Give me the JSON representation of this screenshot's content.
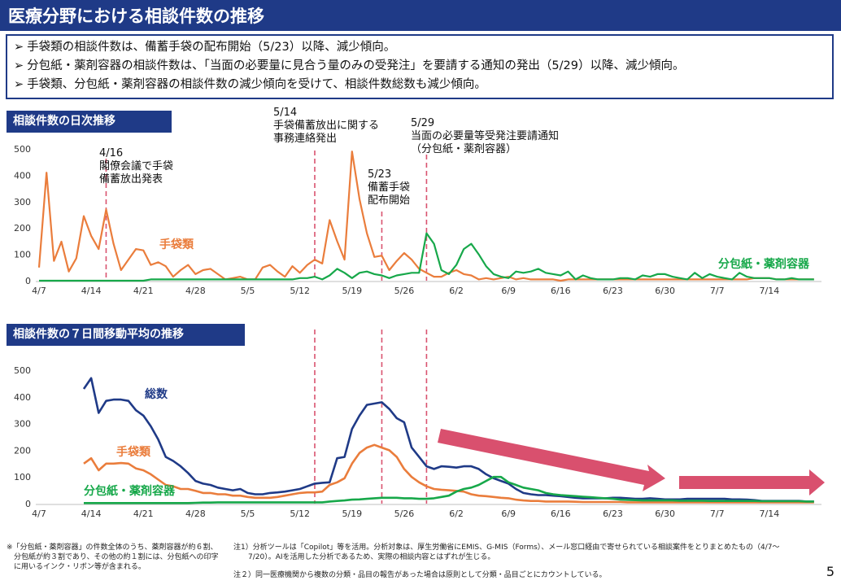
{
  "title": "医療分野における相談件数の推移",
  "summary": [
    "手袋類の相談件数は、備蓄手袋の配布開始（5/23）以降、減少傾向。",
    "分包紙・薬剤容器の相談件数は、「当面の必要量に見合う量のみの受発注」を要請する通知の発出（5/29）以降、減少傾向。",
    "手袋類、分包紙・薬剤容器の相談件数の減少傾向を受けて、相談件数総数も減少傾向。"
  ],
  "section_daily": "相談件数の日次推移",
  "section_ma": "相談件数の７日間移動平均の推移",
  "colors": {
    "navy": "#1f3a87",
    "orange": "#ea7d3c",
    "green": "#17a84a",
    "dash": "#d9536f",
    "arrow": "#d9506e"
  },
  "footnotes": {
    "left": "※「分包紙・薬剤容器」の件数全体のうち、薬剤容器が約６割、\n　分包紙が約３割であり、その他の約１割には、分包紙への印字\n　に用いるインク・リボン等が含まれる。",
    "note1": "注1）分析ツールは「Copilot」等を活用。分析対象は、厚生労働省にEMIS、G-MIS（Forms）、メール窓口経由で寄せられている相談案件をとりまとめたもの（4/7～\n　　7/20）。AIを活用した分析であるため、実際の相談内容とはずれが生じる。",
    "note2": "注２）同一医療機関から複数の分類・品目の報告があった場合は原則として分類・品目ごとにカウントしている。"
  },
  "page_number": "5",
  "chart_data": [
    {
      "type": "line",
      "title": "相談件数の日次推移",
      "x_tick_labels": [
        "4/7",
        "4/14",
        "4/21",
        "4/28",
        "5/5",
        "5/12",
        "5/19",
        "5/26",
        "6/2",
        "6/9",
        "6/16",
        "6/23",
        "6/30",
        "7/7",
        "7/14"
      ],
      "x_start": "4/7",
      "x_end": "7/20",
      "ylim": [
        0,
        500
      ],
      "y_ticks": [
        0,
        100,
        200,
        300,
        400,
        500
      ],
      "grid": false,
      "series": [
        {
          "name": "手袋類",
          "color": "#ea7d3c",
          "values": [
            50,
            410,
            75,
            148,
            35,
            85,
            245,
            170,
            120,
            270,
            140,
            40,
            80,
            120,
            115,
            60,
            70,
            55,
            15,
            40,
            60,
            25,
            40,
            45,
            25,
            5,
            10,
            15,
            5,
            5,
            50,
            60,
            35,
            15,
            55,
            30,
            60,
            80,
            65,
            230,
            150,
            80,
            490,
            310,
            180,
            90,
            95,
            40,
            75,
            105,
            80,
            45,
            30,
            15,
            15,
            30,
            40,
            25,
            20,
            5,
            10,
            5,
            10,
            15,
            5,
            10,
            5,
            5,
            5,
            5,
            0,
            5,
            5,
            5,
            5,
            5,
            5,
            5,
            5,
            5,
            5,
            5,
            5,
            5,
            5,
            5,
            5,
            5,
            5,
            5,
            5,
            5,
            5,
            5,
            5,
            5,
            10,
            10,
            10,
            5,
            5,
            5,
            5,
            5,
            5
          ]
        },
        {
          "name": "分包紙・薬剤容器",
          "color": "#17a84a",
          "values": [
            0,
            0,
            0,
            0,
            0,
            0,
            0,
            0,
            0,
            0,
            0,
            0,
            0,
            0,
            0,
            5,
            5,
            5,
            5,
            5,
            5,
            5,
            5,
            5,
            5,
            5,
            5,
            5,
            5,
            5,
            5,
            5,
            5,
            5,
            5,
            10,
            10,
            15,
            5,
            20,
            45,
            30,
            10,
            30,
            35,
            25,
            20,
            10,
            20,
            25,
            30,
            30,
            180,
            140,
            40,
            25,
            60,
            120,
            140,
            100,
            55,
            25,
            15,
            10,
            35,
            30,
            35,
            45,
            30,
            25,
            20,
            35,
            5,
            20,
            10,
            5,
            5,
            5,
            10,
            10,
            5,
            20,
            15,
            25,
            25,
            15,
            10,
            5,
            30,
            10,
            25,
            15,
            10,
            5,
            30,
            15,
            10,
            10,
            10,
            5,
            5,
            10,
            5,
            5,
            5
          ]
        }
      ],
      "annotations": [
        {
          "date": "4/16",
          "text": "4/16\n閣僚会議で手袋\n備蓄放出発表"
        },
        {
          "date": "5/14",
          "text": "5/14\n手袋備蓄放出に関する\n事務連絡発出"
        },
        {
          "date": "5/23",
          "text": "5/23\n備蓄手袋\n配布開始"
        },
        {
          "date": "5/29",
          "text": "5/29\n当面の必要量等受発注要請通知\n（分包紙・薬剤容器）"
        }
      ]
    },
    {
      "type": "line",
      "title": "相談件数の７日間移動平均の推移",
      "x_tick_labels": [
        "4/7",
        "4/14",
        "4/21",
        "4/28",
        "5/5",
        "5/12",
        "5/19",
        "5/26",
        "6/2",
        "6/9",
        "6/16",
        "6/23",
        "6/30",
        "7/7",
        "7/14"
      ],
      "x_start": "4/13",
      "x_end": "7/20",
      "ylim": [
        0,
        500
      ],
      "y_ticks": [
        0,
        100,
        200,
        300,
        400,
        500
      ],
      "grid": false,
      "series": [
        {
          "name": "総数",
          "color": "#1f3a87",
          "values": [
            430,
            470,
            340,
            385,
            390,
            390,
            385,
            350,
            330,
            290,
            240,
            175,
            160,
            140,
            115,
            85,
            75,
            70,
            60,
            55,
            50,
            55,
            40,
            35,
            35,
            40,
            42,
            45,
            50,
            55,
            65,
            75,
            78,
            80,
            170,
            175,
            280,
            330,
            370,
            375,
            380,
            355,
            320,
            305,
            210,
            175,
            140,
            130,
            140,
            138,
            135,
            140,
            140,
            130,
            110,
            95,
            85,
            75,
            55,
            40,
            35,
            32,
            32,
            30,
            28,
            25,
            22,
            20,
            20,
            20,
            20,
            22,
            22,
            20,
            18,
            18,
            20,
            18,
            16,
            16,
            16,
            18,
            18,
            18,
            18,
            18,
            18,
            16,
            16,
            15,
            13,
            10,
            10,
            10,
            10,
            10,
            10,
            8,
            8
          ]
        },
        {
          "name": "手袋類",
          "color": "#ea7d3c",
          "values": [
            150,
            170,
            125,
            150,
            150,
            152,
            150,
            132,
            125,
            110,
            90,
            70,
            65,
            55,
            55,
            48,
            40,
            40,
            35,
            35,
            30,
            30,
            25,
            22,
            22,
            22,
            25,
            30,
            35,
            40,
            42,
            42,
            45,
            70,
            80,
            95,
            150,
            190,
            210,
            220,
            210,
            200,
            175,
            130,
            100,
            80,
            65,
            55,
            52,
            50,
            48,
            45,
            35,
            30,
            28,
            25,
            22,
            20,
            15,
            12,
            10,
            10,
            8,
            8,
            8,
            8,
            7,
            6,
            6,
            6,
            6,
            6,
            6,
            5,
            5,
            5,
            5,
            5,
            5,
            5,
            5,
            5,
            5,
            5,
            5,
            5,
            5,
            5,
            5,
            5,
            5,
            5,
            5,
            5,
            5,
            5,
            5,
            5,
            5
          ]
        },
        {
          "name": "分包紙・薬剤容器",
          "color": "#17a84a",
          "values": [
            2,
            2,
            2,
            2,
            2,
            2,
            2,
            2,
            2,
            2,
            2,
            2,
            2,
            2,
            2,
            3,
            4,
            4,
            5,
            5,
            5,
            5,
            5,
            5,
            5,
            5,
            5,
            5,
            5,
            5,
            5,
            5,
            5,
            8,
            10,
            12,
            15,
            16,
            18,
            20,
            22,
            22,
            22,
            20,
            20,
            18,
            18,
            20,
            25,
            30,
            45,
            55,
            60,
            70,
            85,
            100,
            100,
            80,
            70,
            60,
            55,
            50,
            40,
            35,
            32,
            30,
            28,
            26,
            24,
            22,
            20,
            18,
            15,
            14,
            13,
            12,
            12,
            12,
            12,
            12,
            11,
            11,
            11,
            11,
            10,
            10,
            10,
            10,
            10,
            10,
            10,
            9,
            9,
            9,
            9,
            9,
            9,
            8,
            8
          ]
        }
      ],
      "trend_arrows": 2
    }
  ]
}
